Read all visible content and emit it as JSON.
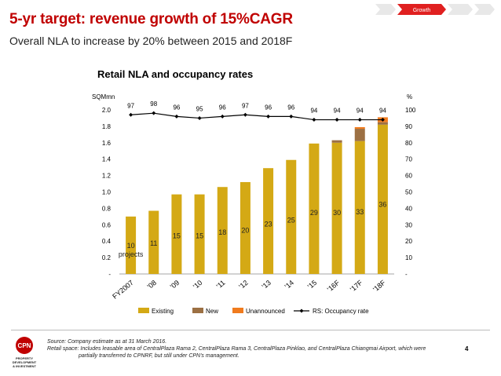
{
  "header": {
    "title": "5-yr target: revenue growth of 15%CAGR",
    "subtitle": "Overall NLA to increase by 20% between 2015 and 2018F",
    "nav_active": "Growth"
  },
  "colors": {
    "title": "#c00000",
    "existing": "#d4a915",
    "new": "#9c7043",
    "unannounced": "#f07b1e",
    "occupancy": "#000000",
    "nav_active": "#e02020",
    "nav_inactive": "#e8e8e8"
  },
  "chart_data": {
    "type": "bar",
    "title": "Retail NLA and occupancy rates",
    "ylabel_left": "SQMmn",
    "ylabel_right": "%",
    "ylim_left": [
      0,
      2.0
    ],
    "ylim_right": [
      0,
      100
    ],
    "yticks_left": [
      "-",
      "0.2",
      "0.4",
      "0.6",
      "0.8",
      "1.0",
      "1.2",
      "1.4",
      "1.6",
      "1.8",
      "2.0"
    ],
    "yticks_right": [
      "-",
      "10",
      "20",
      "30",
      "40",
      "50",
      "60",
      "70",
      "80",
      "90",
      "100"
    ],
    "categories": [
      "FY2007",
      "'08",
      "'09",
      "'10",
      "'11",
      "'12",
      "'13",
      "'14",
      "'15",
      "'16F",
      "'17F",
      "'18F"
    ],
    "series": [
      {
        "name": "Existing",
        "values": [
          0.7,
          0.77,
          0.97,
          0.97,
          1.06,
          1.12,
          1.29,
          1.39,
          1.59,
          1.6,
          1.62,
          1.82
        ]
      },
      {
        "name": "New",
        "values": [
          0,
          0,
          0,
          0,
          0,
          0,
          0,
          0,
          0,
          0.03,
          0.15,
          0.03
        ]
      },
      {
        "name": "Unannounced",
        "values": [
          0,
          0,
          0,
          0,
          0,
          0,
          0,
          0,
          0,
          0,
          0.02,
          0.06
        ]
      },
      {
        "name": "RS: Occupancy rate",
        "axis": "right",
        "values": [
          97,
          98,
          96,
          95,
          96,
          97,
          96,
          96,
          94,
          94,
          94,
          94
        ]
      }
    ],
    "project_counts": [
      "10",
      "11",
      "15",
      "15",
      "18",
      "20",
      "23",
      "25",
      "29",
      "30",
      "33",
      "36"
    ],
    "project_unit": "projects",
    "occupancy_labels": [
      "97",
      "98",
      "96",
      "95",
      "96",
      "97",
      "96",
      "96",
      "94",
      "94",
      "94",
      "94"
    ],
    "legend": [
      "Existing",
      "New",
      "Unannounced",
      "RS: Occupancy rate"
    ],
    "legend_position": "bottom"
  },
  "footer": {
    "source": "Source: Company estimate as at 31 March 2016.",
    "note_line1": "Retail space: Includes leasable area of CentralPlaza Rama 2, CentralPlaza Rama 3, CentralPlaza Pinklao, and CentralPlaza Chiangmai Airport, which were",
    "note_line2": "partially transferred to CPNRF, but still under CPN's management.",
    "page_number": "4",
    "logo_text": "CPN",
    "logo_caption_1": "PROPERTY",
    "logo_caption_2": "DEVELOPMENT",
    "logo_caption_3": "& INVESTMENT"
  }
}
